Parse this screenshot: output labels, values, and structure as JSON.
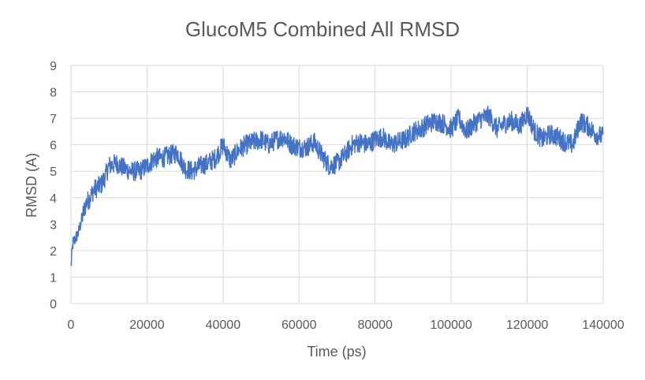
{
  "chart_data": {
    "type": "line",
    "title": "GlucoM5 Combined All RMSD",
    "xlabel": "Time (ps)",
    "ylabel": "RMSD (A)",
    "xlim": [
      0,
      140000
    ],
    "ylim": [
      0,
      9
    ],
    "xticks": [
      0,
      20000,
      40000,
      60000,
      80000,
      100000,
      120000,
      140000
    ],
    "yticks": [
      0,
      1,
      2,
      3,
      4,
      5,
      6,
      7,
      8,
      9
    ],
    "grid": true,
    "legend": "none",
    "series": [
      {
        "color": "#4472c4",
        "x": [
          0,
          500,
          1000,
          2000,
          3000,
          4000,
          5000,
          6000,
          7000,
          8000,
          9000,
          10000,
          12000,
          14000,
          16000,
          18000,
          20000,
          22000,
          24000,
          26000,
          28000,
          30000,
          32000,
          34000,
          36000,
          38000,
          40000,
          42000,
          44000,
          46000,
          48000,
          50000,
          52000,
          54000,
          56000,
          58000,
          60000,
          62000,
          64000,
          66000,
          68000,
          70000,
          72000,
          74000,
          76000,
          78000,
          80000,
          82000,
          84000,
          86000,
          88000,
          90000,
          92000,
          94000,
          96000,
          98000,
          100000,
          102000,
          104000,
          106000,
          108000,
          110000,
          112000,
          114000,
          116000,
          118000,
          120000,
          122000,
          124000,
          126000,
          128000,
          130000,
          132000,
          134000,
          136000,
          138000,
          140000
        ],
        "y": [
          1.4,
          2.3,
          2.4,
          2.7,
          3.3,
          3.8,
          4.0,
          4.3,
          4.4,
          4.5,
          4.8,
          5.2,
          5.3,
          5.1,
          5.0,
          5.0,
          5.2,
          5.5,
          5.5,
          5.6,
          5.7,
          5.1,
          5.0,
          5.2,
          5.3,
          5.5,
          6.0,
          5.4,
          5.8,
          6.0,
          6.1,
          6.2,
          6.0,
          6.2,
          6.3,
          6.0,
          5.9,
          5.9,
          6.1,
          5.6,
          5.2,
          5.3,
          5.6,
          6.0,
          6.1,
          6.0,
          6.2,
          6.3,
          6.0,
          6.1,
          6.2,
          6.5,
          6.6,
          6.8,
          6.9,
          6.8,
          6.6,
          7.0,
          6.5,
          6.8,
          7.0,
          7.1,
          6.6,
          6.8,
          6.9,
          6.7,
          7.2,
          6.5,
          6.2,
          6.4,
          6.3,
          6.1,
          6.0,
          6.9,
          6.7,
          6.4,
          6.3
        ]
      }
    ]
  }
}
